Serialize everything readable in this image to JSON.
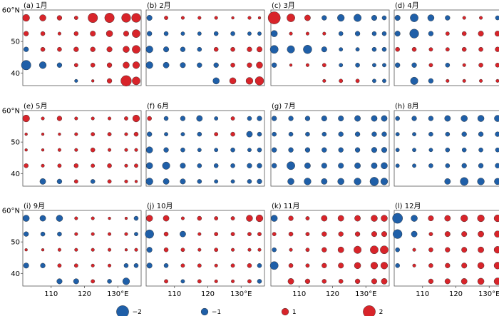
{
  "chart_data": {
    "type": "scatter",
    "panel_labels": [
      "(a) 1月",
      "(b) 2月",
      "(c) 3月",
      "(d) 4月",
      "(e) 5月",
      "(f) 6月",
      "(g) 7月",
      "(h) 8月",
      "(i) 9月",
      "(j) 10月",
      "(k) 11月",
      "(l) 12月"
    ],
    "x_ticks": [
      110,
      120,
      130
    ],
    "x_tick_labels": [
      "110",
      "120",
      "130°E"
    ],
    "y_ticks": [
      40,
      50,
      60
    ],
    "y_tick_labels": [
      "40",
      "50",
      "60°N"
    ],
    "xlim": [
      101.5,
      137
    ],
    "ylim": [
      36,
      60
    ],
    "lons": [
      102.5,
      107.5,
      112.5,
      117.5,
      122.5,
      127.5,
      132.5,
      135.5
    ],
    "lats": [
      57.5,
      52.5,
      47.5,
      42.5,
      37.5
    ],
    "legend": [
      {
        "label": "−2",
        "value": -2
      },
      {
        "label": "−1",
        "value": -1
      },
      {
        "label": "1",
        "value": 1
      },
      {
        "label": "2",
        "value": 2
      }
    ],
    "colors": {
      "negative": "#1f5fa8",
      "positive": "#d8242a"
    },
    "panels": [
      {
        "values": [
          [
            1.0,
            0.9,
            0.6,
            0.4,
            1.5,
            1.5,
            1.4,
            1.4
          ],
          [
            0.6,
            0.5,
            0.3,
            0.5,
            0.7,
            0.9,
            0.7,
            1.2
          ],
          [
            -0.6,
            0.5,
            0.5,
            0.6,
            0.6,
            0.7,
            0.9,
            1.2
          ],
          [
            -1.5,
            -1.0,
            -0.6,
            0.4,
            0.5,
            0.6,
            0.9,
            1.0
          ],
          [
            null,
            null,
            null,
            -0.3,
            0.2,
            0.6,
            1.7,
            1.2
          ]
        ]
      },
      {
        "values": [
          [
            -0.7,
            0.4,
            0.3,
            0.3,
            0.3,
            0.2,
            0.3,
            0.2
          ],
          [
            -0.6,
            -0.5,
            -0.4,
            -0.4,
            -0.5,
            -0.5,
            -0.4,
            -0.4
          ],
          [
            -1.0,
            -0.7,
            -0.6,
            -0.5,
            0.5,
            0.5,
            0.6,
            0.7
          ],
          [
            -1.0,
            -0.8,
            -0.7,
            -0.6,
            -0.6,
            0.5,
            0.6,
            0.9
          ],
          [
            null,
            null,
            null,
            null,
            -0.9,
            0.9,
            1.0,
            1.3
          ]
        ]
      },
      {
        "values": [
          [
            2.0,
            1.2,
            0.8,
            -0.6,
            -1.0,
            -1.1,
            -0.7,
            -0.5
          ],
          [
            -0.9,
            0.3,
            0.3,
            0.3,
            -0.5,
            -0.6,
            -0.5,
            -0.5
          ],
          [
            -1.2,
            -1.1,
            -1.3,
            -0.7,
            -0.4,
            -0.4,
            -0.5,
            -0.5
          ],
          [
            -0.6,
            0.2,
            0.3,
            0.4,
            -0.4,
            -0.5,
            -0.4,
            -0.4
          ],
          [
            null,
            null,
            null,
            0.3,
            0.4,
            0.4,
            -0.4,
            -0.4
          ]
        ]
      },
      {
        "values": [
          [
            -0.7,
            -1.2,
            -0.9,
            -0.6,
            0.3,
            0.3,
            -0.5,
            0.4
          ],
          [
            -0.7,
            -1.4,
            -0.6,
            0.4,
            0.5,
            0.7,
            0.7,
            0.9
          ],
          [
            0.5,
            0.5,
            0.4,
            0.4,
            0.5,
            0.5,
            0.6,
            0.7
          ],
          [
            -0.6,
            -0.6,
            0.4,
            -0.5,
            0.3,
            0.5,
            0.5,
            0.6
          ],
          [
            null,
            -1.1,
            -0.6,
            0.3,
            0.3,
            0.3,
            0.3,
            0.3
          ]
        ]
      },
      {
        "values": [
          [
            1.0,
            0.3,
            0.6,
            0.3,
            0.3,
            0.3,
            0.4,
            1.0
          ],
          [
            0.2,
            0.2,
            0.2,
            0.3,
            0.4,
            0.4,
            0.3,
            0.5
          ],
          [
            0.2,
            0.2,
            0.3,
            0.3,
            0.5,
            0.3,
            0.3,
            0.3
          ],
          [
            0.5,
            0.3,
            0.4,
            0.5,
            0.4,
            0.5,
            0.3,
            0.4
          ],
          [
            null,
            -0.8,
            -0.6,
            0.4,
            -0.5,
            0.4,
            0.3,
            0.2
          ]
        ]
      },
      {
        "values": [
          [
            0.5,
            -0.5,
            -0.6,
            -0.8,
            -0.4,
            0.4,
            -0.5,
            -0.6
          ],
          [
            -0.6,
            -0.4,
            -0.4,
            -0.5,
            0.4,
            0.5,
            -0.8,
            -0.5
          ],
          [
            -0.9,
            -0.6,
            -0.5,
            -0.4,
            -0.4,
            -0.5,
            -0.4,
            -0.5
          ],
          [
            -0.9,
            -1.1,
            -0.7,
            -0.5,
            -0.5,
            -0.5,
            -0.6,
            -0.6
          ],
          [
            -1.0,
            -0.8,
            -0.7,
            -0.5,
            -0.4,
            -0.4,
            -0.5,
            -0.6
          ]
        ]
      },
      {
        "values": [
          [
            -0.6,
            -0.6,
            -0.6,
            -0.7,
            -0.7,
            -0.8,
            -0.8,
            -0.8
          ],
          [
            -0.5,
            -0.5,
            -0.5,
            -0.5,
            -0.6,
            -0.6,
            -0.6,
            -0.6
          ],
          [
            -0.6,
            -0.6,
            -0.6,
            -0.6,
            -0.6,
            -0.6,
            -0.7,
            -0.7
          ],
          [
            -0.6,
            -1.2,
            -0.8,
            -0.7,
            -0.7,
            -0.8,
            -0.8,
            -0.9
          ],
          [
            null,
            -0.9,
            -1.0,
            -0.8,
            -0.9,
            -1.0,
            -1.3,
            -1.0
          ]
        ]
      },
      {
        "values": [
          [
            -0.5,
            -0.6,
            -0.6,
            -0.8,
            -0.9,
            -0.9,
            -0.9,
            -0.9
          ],
          [
            -0.4,
            -0.4,
            -0.5,
            -0.5,
            -0.6,
            -0.6,
            -0.6,
            -0.6
          ],
          [
            -0.4,
            -0.4,
            -0.4,
            -0.5,
            -0.5,
            -0.5,
            -0.5,
            -0.5
          ],
          [
            -0.4,
            -0.4,
            -0.5,
            -0.5,
            -0.6,
            -0.6,
            -0.6,
            0.5
          ],
          [
            null,
            null,
            null,
            -0.8,
            -1.2,
            -1.0,
            -0.9,
            -0.8
          ]
        ]
      },
      {
        "values": [
          [
            -0.9,
            -0.8,
            -0.9,
            0.3,
            0.3,
            0.2,
            0.2,
            -0.5
          ],
          [
            -0.6,
            -0.5,
            -0.5,
            0.3,
            0.3,
            0.3,
            0.3,
            -0.4
          ],
          [
            0.2,
            0.2,
            0.3,
            0.3,
            0.3,
            0.3,
            0.2,
            0.3
          ],
          [
            -0.7,
            -0.6,
            0.4,
            0.4,
            0.3,
            0.3,
            -0.5,
            -0.5
          ],
          [
            null,
            null,
            -0.7,
            -0.7,
            0.4,
            -0.5,
            -1.0,
            null
          ]
        ]
      },
      {
        "values": [
          [
            0.9,
            0.8,
            0.3,
            0.5,
            0.4,
            0.4,
            0.9,
            1.0
          ],
          [
            -1.3,
            0.5,
            -0.8,
            0.3,
            0.4,
            0.4,
            0.4,
            0.4
          ],
          [
            -0.7,
            0.5,
            0.4,
            0.3,
            0.4,
            0.3,
            0.3,
            0.3
          ],
          [
            -0.7,
            -0.5,
            0.4,
            0.4,
            0.3,
            0.4,
            0.5,
            -0.5
          ],
          [
            null,
            0.4,
            -0.4,
            0.4,
            0.3,
            0.3,
            0.4,
            -0.5
          ]
        ]
      },
      {
        "values": [
          [
            -0.9,
            0.6,
            0.4,
            0.8,
            0.8,
            0.8,
            0.9,
            0.9
          ],
          [
            0.4,
            0.5,
            0.4,
            0.6,
            0.6,
            0.6,
            0.7,
            0.7
          ],
          [
            -0.5,
            0.3,
            0.4,
            0.6,
            0.8,
            1.1,
            1.2,
            1.2
          ],
          [
            -1.2,
            0.5,
            0.4,
            0.6,
            0.7,
            0.9,
            1.0,
            1.0
          ],
          [
            null,
            0.8,
            0.6,
            0.5,
            0.5,
            0.6,
            0.7,
            0.8
          ]
        ]
      },
      {
        "values": [
          [
            -1.6,
            -0.9,
            0.7,
            0.8,
            1.0,
            1.0,
            1.0,
            1.0
          ],
          [
            -1.4,
            -0.8,
            0.4,
            0.7,
            0.7,
            0.8,
            0.9,
            1.0
          ],
          [
            -0.5,
            0.3,
            0.5,
            0.6,
            0.7,
            0.8,
            1.0,
            1.0
          ],
          [
            -0.5,
            0.3,
            0.5,
            0.6,
            0.7,
            0.9,
            1.0,
            1.1
          ],
          [
            null,
            null,
            0.6,
            0.7,
            0.8,
            0.9,
            1.0,
            1.0
          ]
        ]
      }
    ]
  }
}
